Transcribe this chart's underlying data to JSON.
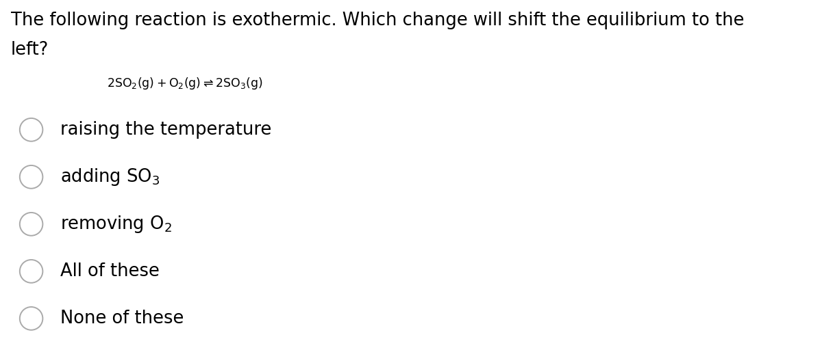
{
  "background_color": "#ffffff",
  "question_line1": "The following reaction is exothermic. Which change will shift the equilibrium to the",
  "question_line2": "left?",
  "options": [
    {
      "label": "raising the temperature",
      "has_sub": false
    },
    {
      "label": "adding SO$_3$",
      "has_sub": true
    },
    {
      "label": "removing O$_2$",
      "has_sub": true
    },
    {
      "label": "All of these",
      "has_sub": false
    },
    {
      "label": "None of these",
      "has_sub": false
    }
  ],
  "question_fontsize": 18.5,
  "option_fontsize": 18.5,
  "equation_fontsize": 12.5,
  "title_color": "#000000",
  "circle_color": "#aaaaaa",
  "circle_linewidth": 1.4
}
